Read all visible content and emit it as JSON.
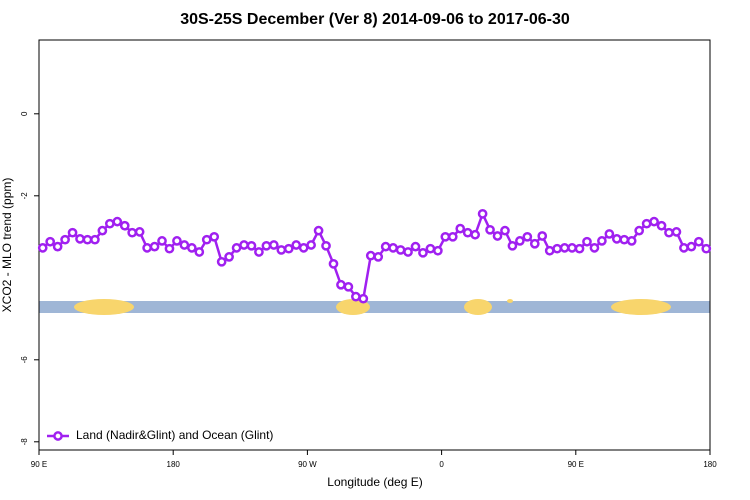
{
  "chart_data": {
    "type": "line",
    "title": "30S-25S December (Ver 8)   2014-09-06 to 2017-06-30",
    "xlabel": "Longitude (deg E)",
    "ylabel": "XCO2 - MLO trend (ppm)",
    "xlim": [
      90,
      540
    ],
    "ylim": [
      -8.2,
      1.8
    ],
    "xticks": [
      {
        "value": 90,
        "label": "90 E"
      },
      180,
      {
        "value": 270,
        "label": "90 W"
      },
      {
        "value": 360,
        "label": "0"
      },
      {
        "value": 450,
        "label": "90 E"
      },
      {
        "value": 540,
        "label": "180"
      }
    ],
    "yticks": [
      0,
      -2,
      -6,
      -8
    ],
    "legend": "bottom-left",
    "x": [
      92.5,
      97.5,
      102.5,
      107.5,
      112.5,
      117.5,
      122.5,
      127.5,
      132.5,
      137.5,
      142.5,
      147.5,
      152.5,
      157.5,
      162.5,
      167.5,
      172.5,
      177.5,
      182.5,
      187.5,
      192.5,
      197.5,
      202.5,
      207.5,
      212.5,
      217.5,
      222.5,
      227.5,
      232.5,
      237.5,
      242.5,
      247.5,
      252.5,
      257.5,
      262.5,
      267.5,
      272.5,
      277.5,
      282.5,
      287.5,
      292.5,
      297.5,
      302.5,
      307.5,
      312.5,
      317.5,
      322.5,
      327.5,
      332.5,
      337.5,
      342.5,
      347.5,
      352.5,
      357.5,
      362.5,
      367.5,
      372.5,
      377.5,
      382.5,
      387.5,
      392.5,
      397.5,
      402.5,
      407.5,
      412.5,
      417.5,
      422.5,
      427.5,
      432.5,
      437.5,
      442.5,
      447.5,
      452.5,
      457.5,
      462.5,
      467.5,
      472.5,
      477.5,
      482.5,
      487.5,
      492.5,
      497.5,
      502.5,
      507.5,
      512.5,
      517.5,
      522.5,
      527.5,
      532.5,
      537.5
    ],
    "series": [
      {
        "name": "Land (Nadir&Glint) and Ocean (Glint)",
        "color": "#a020f0",
        "values": [
          -3.27,
          -3.12,
          -3.24,
          -3.07,
          -2.9,
          -3.05,
          -3.07,
          -3.07,
          -2.85,
          -2.68,
          -2.63,
          -2.73,
          -2.9,
          -2.88,
          -3.27,
          -3.24,
          -3.1,
          -3.29,
          -3.1,
          -3.2,
          -3.27,
          -3.37,
          -3.07,
          -3.0,
          -3.61,
          -3.49,
          -3.27,
          -3.2,
          -3.22,
          -3.37,
          -3.22,
          -3.2,
          -3.32,
          -3.29,
          -3.2,
          -3.27,
          -3.2,
          -2.85,
          -3.22,
          -3.66,
          -4.17,
          -4.22,
          -4.46,
          -4.51,
          -3.46,
          -3.49,
          -3.24,
          -3.27,
          -3.32,
          -3.37,
          -3.24,
          -3.39,
          -3.29,
          -3.34,
          -3.0,
          -3.0,
          -2.8,
          -2.9,
          -2.95,
          -2.44,
          -2.83,
          -2.98,
          -2.85,
          -3.22,
          -3.1,
          -3.0,
          -3.17,
          -2.98,
          -3.34,
          -3.29,
          -3.27,
          -3.27,
          -3.29,
          -3.12,
          -3.27,
          -3.1,
          -2.93,
          -3.05,
          -3.07,
          -3.1,
          -2.85,
          -2.68,
          -2.63,
          -2.73,
          -2.9,
          -2.88,
          -3.27,
          -3.24,
          -3.12,
          -3.29
        ]
      }
    ]
  }
}
